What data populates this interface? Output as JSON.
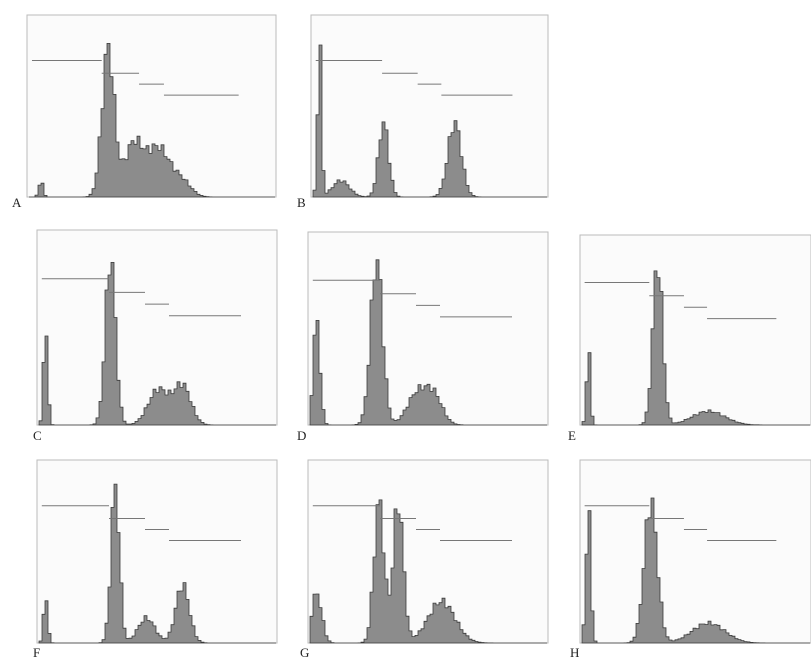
{
  "panels": [
    {
      "label": "A"
    },
    {
      "label": "B"
    },
    {
      "label": "C"
    },
    {
      "label": "D"
    },
    {
      "label": "E"
    },
    {
      "label": "F"
    },
    {
      "label": "G"
    },
    {
      "label": "H"
    }
  ]
}
